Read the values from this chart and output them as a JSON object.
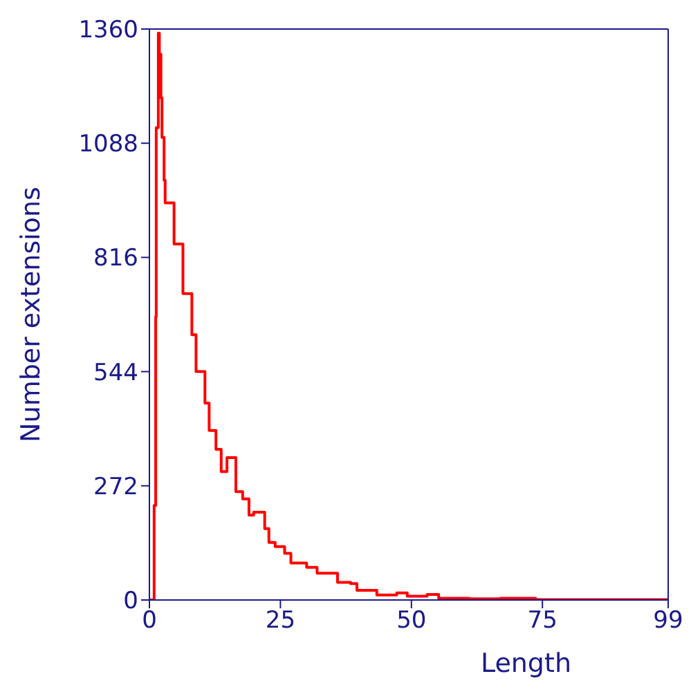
{
  "chart_data": {
    "type": "step",
    "xlabel": "Length",
    "ylabel": "Number extensions",
    "x": [
      0,
      0.9,
      1.2,
      1.3,
      1.7,
      1.9,
      2.2,
      2.4,
      2.8,
      3.0,
      4.7,
      6.4,
      8.1,
      8.9,
      10.6,
      11.4,
      12.7,
      13.7,
      14.8,
      16.5,
      17.8,
      19,
      19.9,
      22,
      22.8,
      24,
      25.8,
      27,
      30,
      32,
      35.9,
      38.4,
      39.6,
      43.4,
      47.2,
      49.2,
      53,
      55.2,
      61,
      67,
      73.7,
      99
    ],
    "series": [
      {
        "color": "#ff0000",
        "values": [
          0,
          225,
          675,
          1125,
          1350,
          1300,
          1196,
          1102,
          1000,
          946,
          848,
          730,
          632,
          544,
          469,
          404,
          359,
          306,
          339,
          258,
          241,
          202,
          209,
          170,
          137,
          127,
          111,
          88,
          78,
          64,
          42,
          39,
          23,
          12,
          17,
          9,
          13,
          4,
          3,
          4,
          1,
          0
        ]
      }
    ],
    "xlim": [
      0,
      99
    ],
    "xticks": [
      0,
      25,
      50,
      75,
      99
    ],
    "ylim": [
      0,
      1360
    ],
    "yticks": [
      0,
      272,
      544,
      816,
      1088,
      1360
    ],
    "grid": false,
    "legend": false,
    "marker": "none",
    "line_style": "solid"
  }
}
